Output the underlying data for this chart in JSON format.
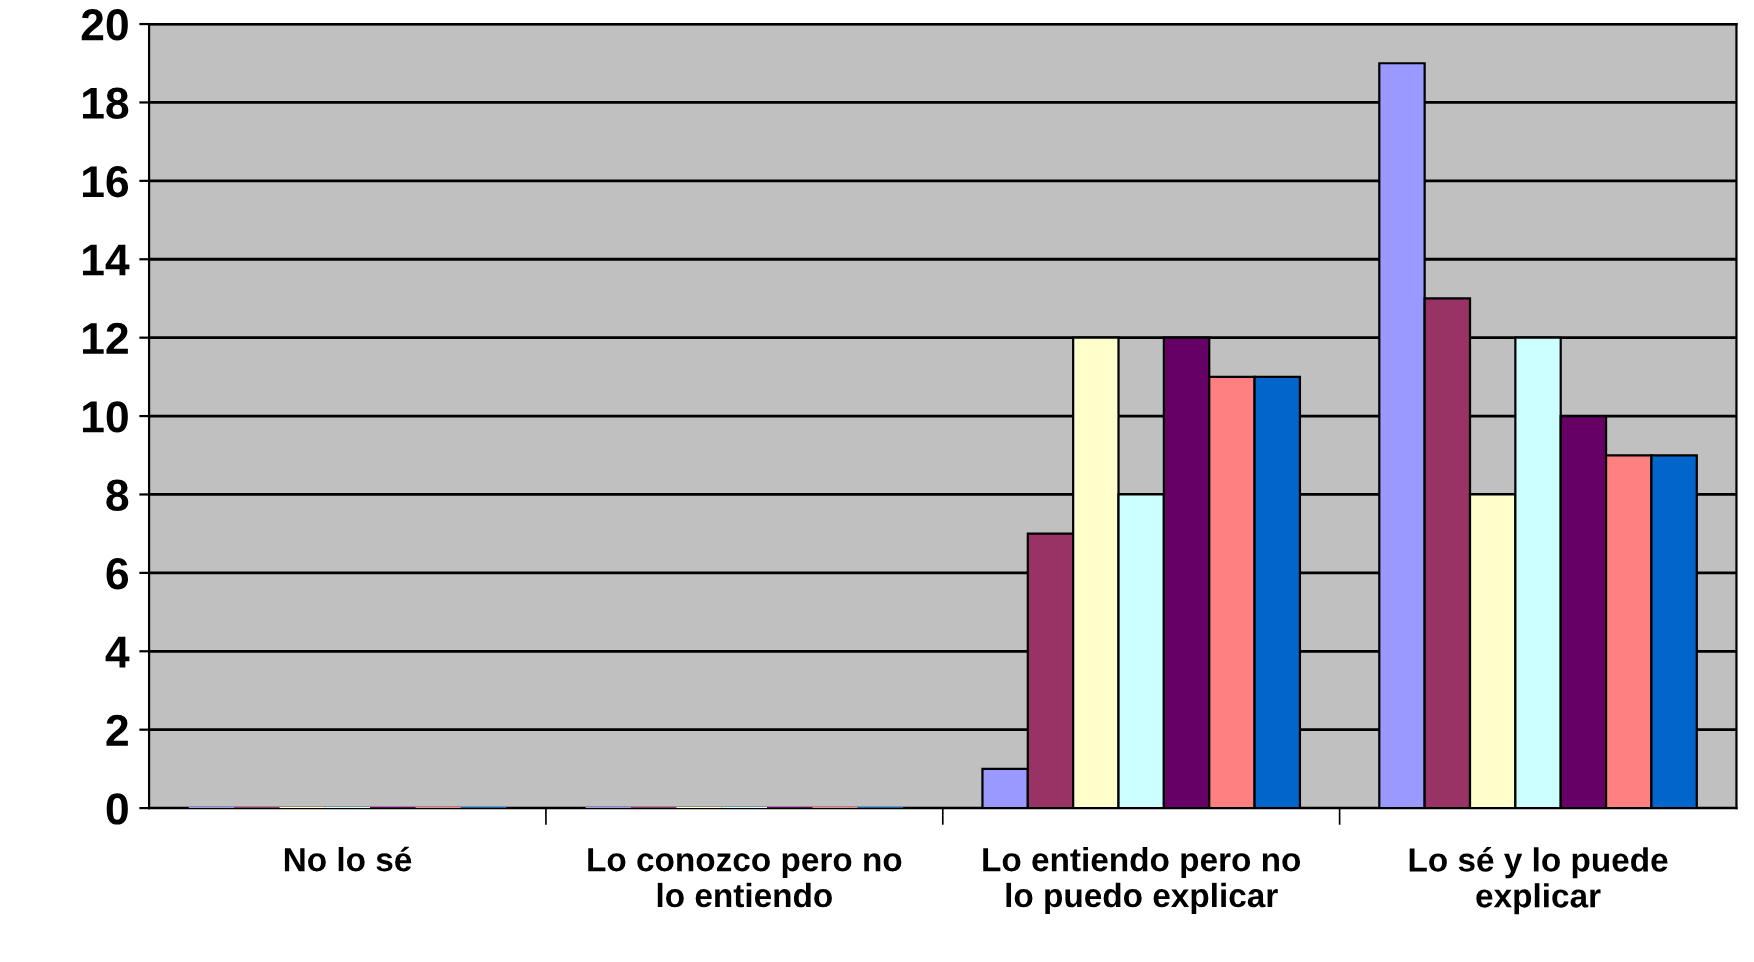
{
  "chart_data": {
    "type": "bar",
    "categories": [
      "No lo sé",
      "Lo conozco pero no\nlo entiendo",
      "Lo entiendo pero no\nlo puedo explicar",
      "Lo sé y lo puede\nexplicar"
    ],
    "series": [
      {
        "color": "#9999ff",
        "values": [
          0,
          0,
          1,
          19
        ]
      },
      {
        "color": "#993366",
        "values": [
          0,
          0,
          7,
          13
        ]
      },
      {
        "color": "#ffffcc",
        "values": [
          0,
          0,
          12,
          8
        ]
      },
      {
        "color": "#ccffff",
        "values": [
          0,
          0,
          8,
          12
        ]
      },
      {
        "color": "#660066",
        "values": [
          0,
          0,
          12,
          10
        ]
      },
      {
        "color": "#ff8080",
        "values": [
          0,
          0,
          11,
          9
        ]
      },
      {
        "color": "#0066cc",
        "values": [
          0,
          0,
          11,
          9
        ]
      }
    ],
    "ylim": [
      0,
      20
    ],
    "yticks": [
      0,
      2,
      4,
      6,
      8,
      10,
      12,
      14,
      16,
      18,
      20
    ],
    "grid": "y",
    "legend": false
  }
}
